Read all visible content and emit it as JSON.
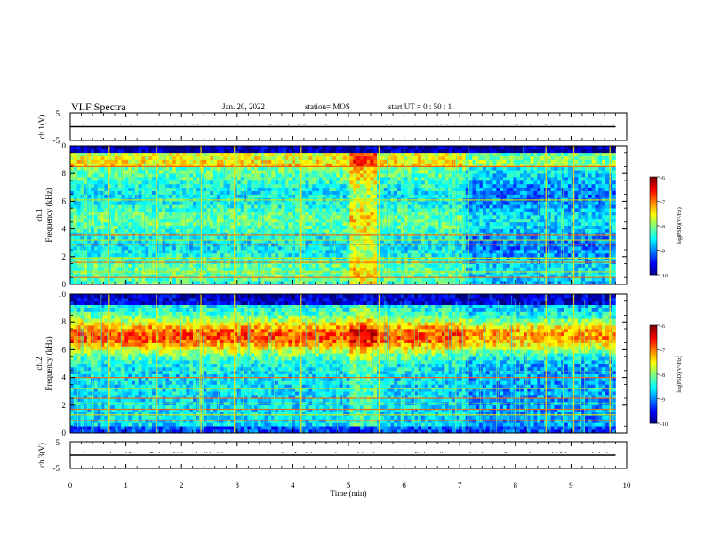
{
  "header": {
    "title": "VLF Spectra",
    "date": "Jan. 20, 2022",
    "station": "station= MOS",
    "start": "start UT =  0 : 50 : 1"
  },
  "chart_data": [
    {
      "type": "line",
      "panel": "ch1-waveform",
      "ylabel": "ch.1(V)",
      "yticks": [
        "5",
        "-5"
      ],
      "ylim": [
        -5,
        5
      ],
      "xlim": [
        0,
        10
      ],
      "series": [
        {
          "x": [
            0,
            9.8
          ],
          "values": [
            0,
            0
          ]
        }
      ]
    },
    {
      "type": "heatmap",
      "panel": "ch1-spectrogram",
      "ylabel": "ch.1 Frequency (kHz)",
      "yticks": [
        "0",
        "2",
        "4",
        "6",
        "8",
        "10"
      ],
      "ylim": [
        0,
        10
      ],
      "xlim": [
        0,
        9.8
      ],
      "colorbar": {
        "label": "log(PSD)(V²/Hz)",
        "ticks": [
          "-6",
          "-7",
          "-8",
          "-9",
          "-10"
        ],
        "range": [
          -10,
          -6
        ]
      }
    },
    {
      "type": "heatmap",
      "panel": "ch2-spectrogram",
      "ylabel": "ch.2 Frequency (kHz)",
      "yticks": [
        "0",
        "2",
        "4",
        "6",
        "8",
        "10"
      ],
      "ylim": [
        0,
        10
      ],
      "xlim": [
        0,
        9.8
      ],
      "colorbar": {
        "label": "log(PSD)(V²/Hz)",
        "ticks": [
          "-6",
          "-7",
          "-8",
          "-9",
          "-10"
        ],
        "range": [
          -10,
          -6
        ]
      }
    },
    {
      "type": "line",
      "panel": "ch3-waveform",
      "ylabel": "ch.3(V)",
      "yticks": [
        "5",
        "-5"
      ],
      "ylim": [
        -5,
        5
      ],
      "xlim": [
        0,
        10
      ],
      "series": [
        {
          "x": [
            0,
            9.8
          ],
          "values": [
            0,
            0
          ]
        }
      ]
    }
  ],
  "xaxis": {
    "label": "Time (min)",
    "ticks": [
      "0",
      "1",
      "2",
      "3",
      "4",
      "5",
      "6",
      "7",
      "8",
      "9",
      "10"
    ]
  }
}
